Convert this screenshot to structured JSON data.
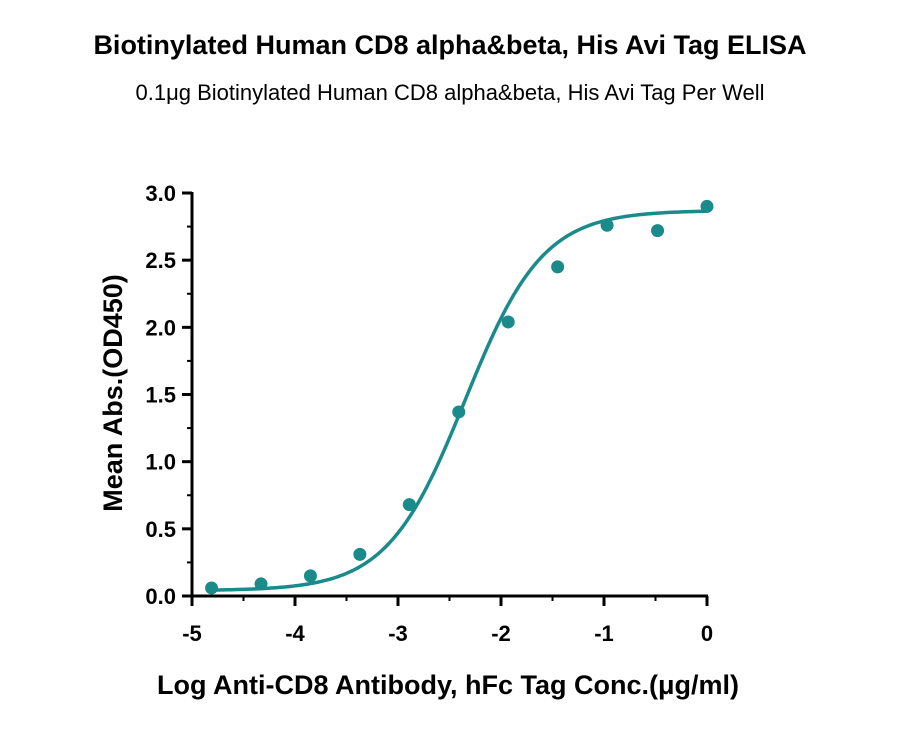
{
  "chart_data": {
    "type": "scatter",
    "title": "Biotinylated Human CD8 alpha&beta, His Avi Tag ELISA",
    "subtitle": "0.1μg Biotinylated Human CD8 alpha&beta, His Avi Tag Per Well",
    "xlabel": "Log Anti-CD8 Antibody, hFc Tag Conc.(μg/ml)",
    "ylabel": "Mean Abs.(OD450)",
    "xlim": [
      -5,
      0
    ],
    "ylim": [
      0,
      3.0
    ],
    "x_ticks": [
      -5,
      -4,
      -3,
      -2,
      -1,
      0
    ],
    "x_tick_labels": [
      "-5",
      "-4",
      "-3",
      "-2",
      "-1",
      "0"
    ],
    "y_ticks": [
      0,
      0.5,
      1.0,
      1.5,
      2.0,
      2.5,
      3.0
    ],
    "y_tick_labels": [
      "0.0",
      "0.5",
      "1.0",
      "1.5",
      "2.0",
      "2.5",
      "3.0"
    ],
    "grid": false,
    "color": "#1a8a8a",
    "series": [
      {
        "x": [
          -4.81,
          -4.33,
          -3.85,
          -3.37,
          -2.89,
          -2.41,
          -1.93,
          -1.45,
          -0.97,
          -0.48,
          0.0
        ],
        "y": [
          0.06,
          0.09,
          0.15,
          0.31,
          0.68,
          1.37,
          2.04,
          2.45,
          2.76,
          2.72,
          2.9
        ]
      }
    ],
    "fit_curve": {
      "model": "4PL",
      "bottom": 0.04,
      "top": 2.87,
      "log_ec50": -2.35,
      "hill_slope": 1.15
    }
  }
}
